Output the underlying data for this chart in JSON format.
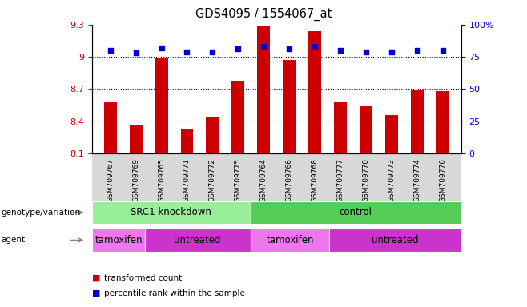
{
  "title": "GDS4095 / 1554067_at",
  "samples": [
    "GSM709767",
    "GSM709769",
    "GSM709765",
    "GSM709771",
    "GSM709772",
    "GSM709775",
    "GSM709764",
    "GSM709766",
    "GSM709768",
    "GSM709777",
    "GSM709770",
    "GSM709773",
    "GSM709774",
    "GSM709776"
  ],
  "bar_values": [
    8.58,
    8.37,
    8.99,
    8.33,
    8.44,
    8.78,
    9.29,
    8.97,
    9.24,
    8.58,
    8.55,
    8.46,
    8.69,
    8.68
  ],
  "dot_values": [
    80,
    78,
    82,
    79,
    79,
    81,
    83,
    81,
    83,
    80,
    79,
    79,
    80,
    80
  ],
  "bar_base": 8.1,
  "ylim_left": [
    8.1,
    9.3
  ],
  "ylim_right": [
    0,
    100
  ],
  "yticks_left": [
    8.1,
    8.4,
    8.7,
    9.0,
    9.3
  ],
  "yticks_right": [
    0,
    25,
    50,
    75,
    100
  ],
  "ytick_labels_left": [
    "8.1",
    "8.4",
    "8.7",
    "9",
    "9.3"
  ],
  "ytick_labels_right": [
    "0",
    "25",
    "50",
    "75",
    "100%"
  ],
  "bar_color": "#cc0000",
  "dot_color": "#0000cc",
  "hline_values": [
    9.0,
    8.7,
    8.4
  ],
  "genotype_groups": [
    {
      "label": "SRC1 knockdown",
      "start": 0,
      "end": 6,
      "color": "#99ee99"
    },
    {
      "label": "control",
      "start": 6,
      "end": 14,
      "color": "#55cc55"
    }
  ],
  "agent_groups": [
    {
      "label": "tamoxifen",
      "start": 0,
      "end": 2,
      "color": "#ee77ee"
    },
    {
      "label": "untreated",
      "start": 2,
      "end": 6,
      "color": "#cc33cc"
    },
    {
      "label": "tamoxifen",
      "start": 6,
      "end": 9,
      "color": "#ee77ee"
    },
    {
      "label": "untreated",
      "start": 9,
      "end": 14,
      "color": "#cc33cc"
    }
  ],
  "legend_items": [
    {
      "label": "transformed count",
      "color": "#cc0000"
    },
    {
      "label": "percentile rank within the sample",
      "color": "#0000cc"
    }
  ],
  "row_labels": [
    "genotype/variation",
    "agent"
  ],
  "plot_bg": "#ffffff"
}
